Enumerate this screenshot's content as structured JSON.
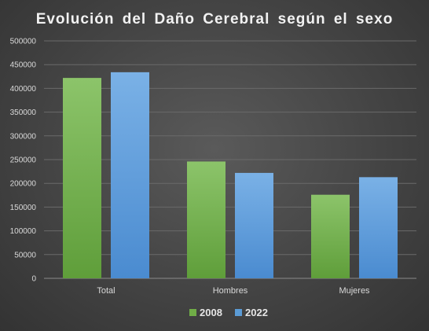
{
  "chart_data": {
    "type": "bar",
    "title": "Evolución  del Daño Cerebral  según  el sexo",
    "categories": [
      "Total",
      "Hombres",
      "Mujeres"
    ],
    "series": [
      {
        "name": "2008",
        "values": [
          422000,
          246000,
          176000
        ],
        "color": "#70ad47"
      },
      {
        "name": "2022",
        "values": [
          434000,
          222000,
          213000
        ],
        "color": "#5b9bd5"
      }
    ],
    "xlabel": "",
    "ylabel": "",
    "ylim": [
      0,
      500000
    ],
    "yticks": [
      0,
      50000,
      100000,
      150000,
      200000,
      250000,
      300000,
      350000,
      400000,
      450000,
      500000
    ],
    "grid": true,
    "legend_position": "bottom"
  }
}
